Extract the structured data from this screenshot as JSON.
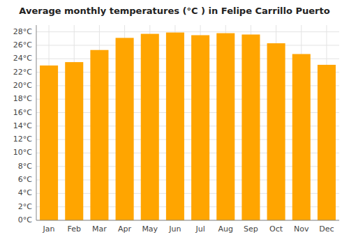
{
  "chart_data": {
    "type": "bar",
    "title": "Average monthly temperatures (°C ) in Felipe Carrillo Puerto",
    "categories": [
      "Jan",
      "Feb",
      "Mar",
      "Apr",
      "May",
      "Jun",
      "Jul",
      "Aug",
      "Sep",
      "Oct",
      "Nov",
      "Dec"
    ],
    "values": [
      23.0,
      23.5,
      25.3,
      27.1,
      27.7,
      27.9,
      27.5,
      27.8,
      27.6,
      26.3,
      24.7,
      23.1
    ],
    "color": "#FFA500",
    "ylim": [
      0,
      29
    ],
    "yticks": [
      {
        "value": 0,
        "label": "0°C"
      },
      {
        "value": 2,
        "label": "2°C"
      },
      {
        "value": 4,
        "label": "4°C"
      },
      {
        "value": 6,
        "label": "6°C"
      },
      {
        "value": 8,
        "label": "8°C"
      },
      {
        "value": 10,
        "label": "10°C"
      },
      {
        "value": 12,
        "label": "12°C"
      },
      {
        "value": 14,
        "label": "14°C"
      },
      {
        "value": 16,
        "label": "16°C"
      },
      {
        "value": 18,
        "label": "18°C"
      },
      {
        "value": 20,
        "label": "20°C"
      },
      {
        "value": 22,
        "label": "22°C"
      },
      {
        "value": 24,
        "label": "24°C"
      },
      {
        "value": 26,
        "label": "26°C"
      },
      {
        "value": 28,
        "label": "28°C"
      }
    ],
    "grid": true
  }
}
